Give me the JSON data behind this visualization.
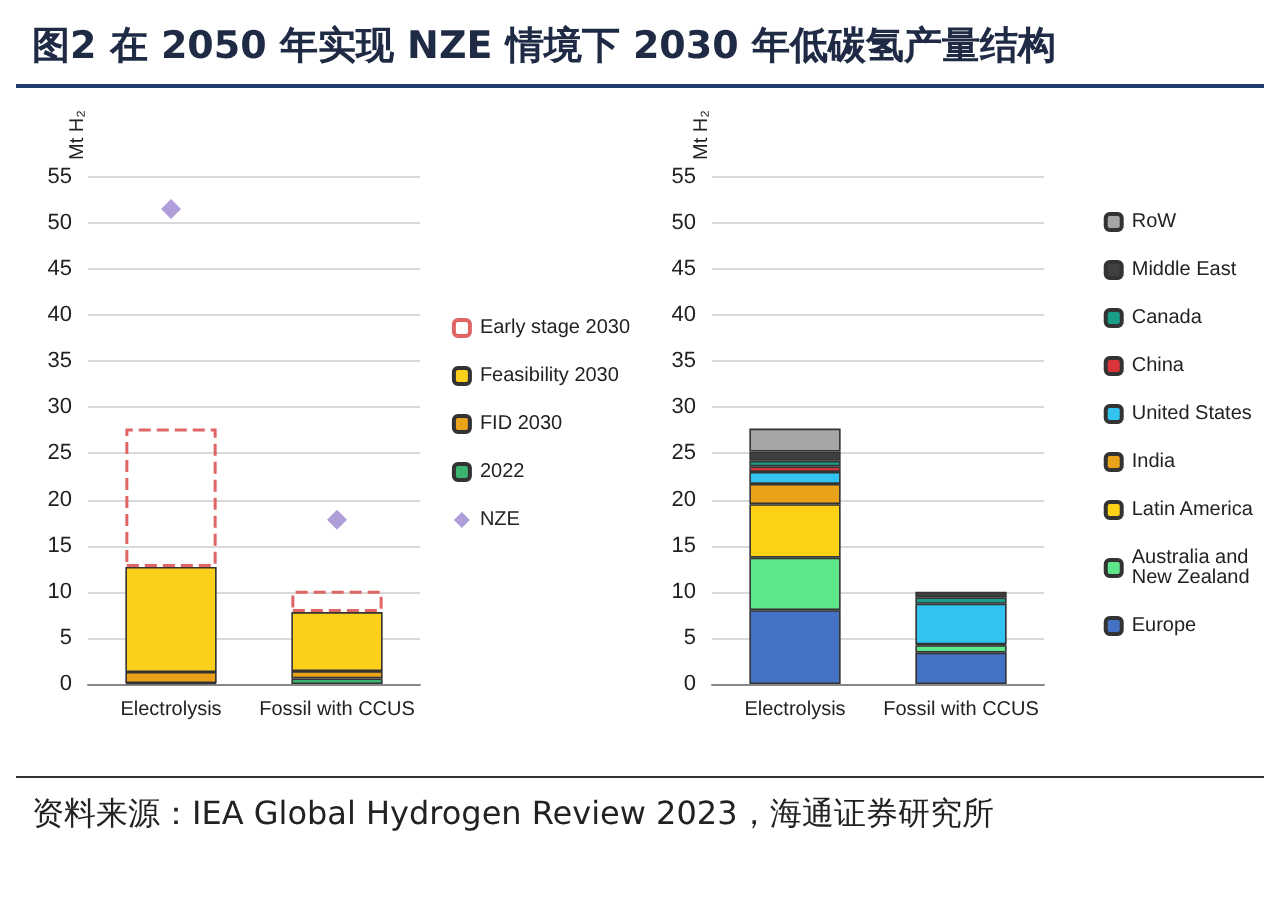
{
  "chart_data": [
    {
      "type": "bar",
      "title": "图2  在 2050 年实现 NZE 情境下 2030 年低碳氢产量结构",
      "ylabel": "Mt H₂",
      "categories": [
        "Electrolysis",
        "Fossil with CCUS"
      ],
      "stacked": true,
      "ylim": [
        0,
        55
      ],
      "yticks": [
        0,
        5,
        10,
        15,
        20,
        25,
        30,
        35,
        40,
        45,
        50,
        55
      ],
      "grid": "y",
      "legend": "right",
      "series": [
        {
          "name": "2022",
          "color": "#3cb371",
          "values": [
            0.1,
            0.6
          ]
        },
        {
          "name": "FID 2030",
          "color": "#e9a219",
          "values": [
            1.2,
            0.8
          ]
        },
        {
          "name": "Feasibility 2030",
          "color": "#fccf1a",
          "values": [
            11.4,
            6.4
          ]
        },
        {
          "name": "Early stage 2030",
          "color": "#e06666",
          "line_style": "dashed",
          "values": [
            15,
            2.3
          ]
        },
        {
          "name": "NZE",
          "type": "scatter",
          "marker": "diamond",
          "color": "#9b86d0",
          "x": [
            "Electrolysis",
            "Fossil with CCUS"
          ],
          "values": [
            51.5,
            17.8
          ]
        }
      ]
    },
    {
      "type": "bar",
      "ylabel": "Mt H₂",
      "categories": [
        "Electrolysis",
        "Fossil with CCUS"
      ],
      "stacked": true,
      "ylim": [
        0,
        55
      ],
      "yticks": [
        0,
        5,
        10,
        15,
        20,
        25,
        30,
        35,
        40,
        45,
        50,
        55
      ],
      "grid": "y",
      "legend": "right",
      "annotations": [
        "资料来源：IEA Global Hydrogen Review 2023，海通证券研究所"
      ],
      "series": [
        {
          "name": "Europe",
          "color": "#4472c4",
          "values": [
            8.0,
            3.4
          ]
        },
        {
          "name": "Australia and\nNew Zealand",
          "color": "#5ee68a",
          "values": [
            5.7,
            0.8
          ]
        },
        {
          "name": "Latin America",
          "color": "#fcd116",
          "values": [
            5.8,
            null
          ]
        },
        {
          "name": "India",
          "color": "#e9a219",
          "values": [
            2.2,
            0.1
          ]
        },
        {
          "name": "United States",
          "color": "#33c3f0",
          "values": [
            1.3,
            4.4
          ]
        },
        {
          "name": "China",
          "color": "#d9343a",
          "values": [
            0.6,
            null
          ]
        },
        {
          "name": "Canada",
          "color": "#1a9e8a",
          "values": [
            0.6,
            0.7
          ]
        },
        {
          "name": "Middle East",
          "color": "#404040",
          "values": [
            1.0,
            0.6
          ]
        },
        {
          "name": "RoW",
          "color": "#a6a6a6",
          "values": [
            2.5,
            null
          ]
        }
      ]
    }
  ]
}
